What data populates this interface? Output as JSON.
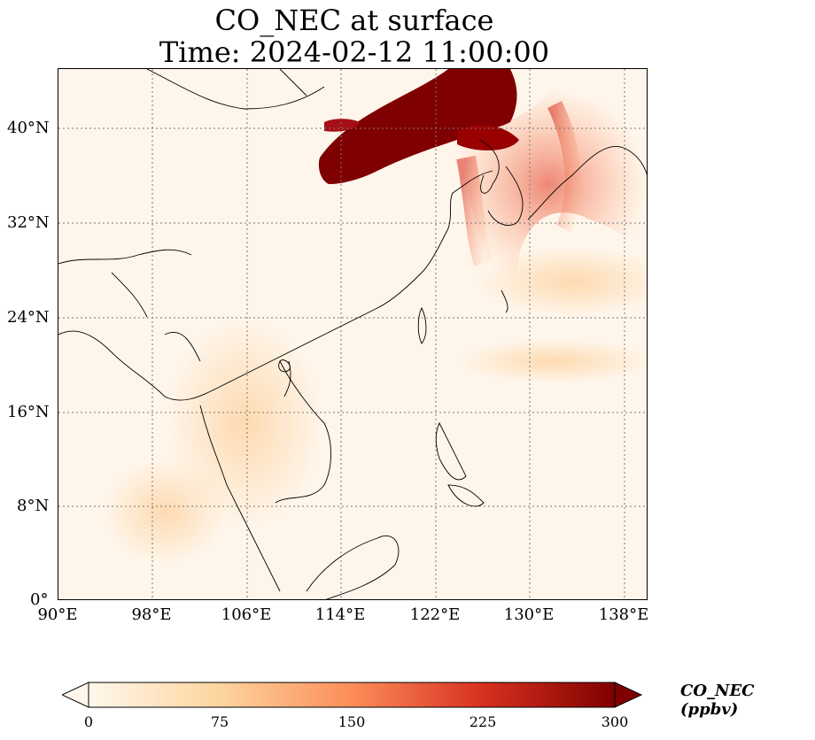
{
  "title": {
    "line1": "CO_NEC at surface",
    "line2": "Time: 2024-02-12 11:00:00"
  },
  "map": {
    "lon_ticks": [
      "90°E",
      "98°E",
      "106°E",
      "114°E",
      "122°E",
      "130°E",
      "138°E"
    ],
    "lat_ticks": [
      "40°N",
      "32°N",
      "24°N",
      "16°N",
      "8°N",
      "0°"
    ],
    "lon_range": [
      90,
      140
    ],
    "lat_range": [
      0,
      45
    ],
    "gridlines": "dotted",
    "colormap": "OrRd",
    "plume_color": "#7f0000",
    "background_color": "#fff6eb"
  },
  "colorbar": {
    "label": "CO_NEC (ppbv)",
    "ticks": [
      "0",
      "75",
      "150",
      "225",
      "300"
    ],
    "range": [
      0,
      300
    ],
    "extend": "both",
    "colors": [
      "#fff7ec",
      "#fdd49e",
      "#fc8d59",
      "#d7301f",
      "#7f0000"
    ]
  }
}
